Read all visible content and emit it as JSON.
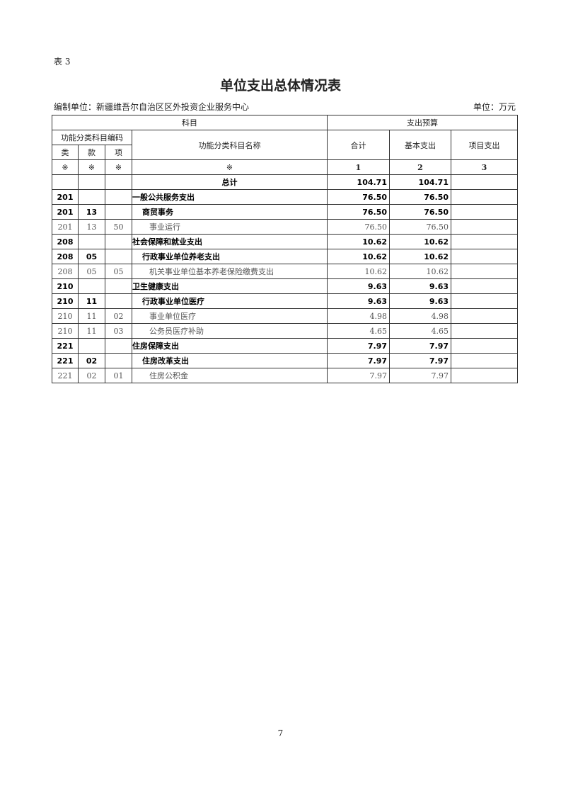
{
  "table_no": "表 3",
  "title": "单位支出总体情况表",
  "org": "编制单位：新疆维吾尔自治区区外投资企业服务中心",
  "unit": "单位：万元",
  "headers": {
    "subject": "科目",
    "budget": "支出预算",
    "code": "功能分类科目编码",
    "name": "功能分类科目名称",
    "total": "合计",
    "basic": "基本支出",
    "project": "项目支出",
    "lei": "类",
    "kuan": "款",
    "xiang": "项",
    "mark": "※",
    "n1": "1",
    "n2": "2",
    "n3": "3"
  },
  "grand_total": {
    "label": "总计",
    "total": "104.71",
    "basic": "104.71",
    "project": ""
  },
  "rows": [
    {
      "lei": "201",
      "kuan": "",
      "xiang": "",
      "name": "一般公共服务支出",
      "total": "76.50",
      "basic": "76.50",
      "project": "",
      "level": 1
    },
    {
      "lei": "201",
      "kuan": "13",
      "xiang": "",
      "name": "商贸事务",
      "total": "76.50",
      "basic": "76.50",
      "project": "",
      "level": 2
    },
    {
      "lei": "201",
      "kuan": "13",
      "xiang": "50",
      "name": "事业运行",
      "total": "76.50",
      "basic": "76.50",
      "project": "",
      "level": 3
    },
    {
      "lei": "208",
      "kuan": "",
      "xiang": "",
      "name": "社会保障和就业支出",
      "total": "10.62",
      "basic": "10.62",
      "project": "",
      "level": 1
    },
    {
      "lei": "208",
      "kuan": "05",
      "xiang": "",
      "name": "行政事业单位养老支出",
      "total": "10.62",
      "basic": "10.62",
      "project": "",
      "level": 2
    },
    {
      "lei": "208",
      "kuan": "05",
      "xiang": "05",
      "name": "机关事业单位基本养老保险缴费支出",
      "total": "10.62",
      "basic": "10.62",
      "project": "",
      "level": 3
    },
    {
      "lei": "210",
      "kuan": "",
      "xiang": "",
      "name": "卫生健康支出",
      "total": "9.63",
      "basic": "9.63",
      "project": "",
      "level": 1
    },
    {
      "lei": "210",
      "kuan": "11",
      "xiang": "",
      "name": "行政事业单位医疗",
      "total": "9.63",
      "basic": "9.63",
      "project": "",
      "level": 2
    },
    {
      "lei": "210",
      "kuan": "11",
      "xiang": "02",
      "name": "事业单位医疗",
      "total": "4.98",
      "basic": "4.98",
      "project": "",
      "level": 3
    },
    {
      "lei": "210",
      "kuan": "11",
      "xiang": "03",
      "name": "公务员医疗补助",
      "total": "4.65",
      "basic": "4.65",
      "project": "",
      "level": 3
    },
    {
      "lei": "221",
      "kuan": "",
      "xiang": "",
      "name": "住房保障支出",
      "total": "7.97",
      "basic": "7.97",
      "project": "",
      "level": 1
    },
    {
      "lei": "221",
      "kuan": "02",
      "xiang": "",
      "name": "住房改革支出",
      "total": "7.97",
      "basic": "7.97",
      "project": "",
      "level": 2
    },
    {
      "lei": "221",
      "kuan": "02",
      "xiang": "01",
      "name": "住房公积金",
      "total": "7.97",
      "basic": "7.97",
      "project": "",
      "level": 3
    }
  ],
  "page_number": "7"
}
